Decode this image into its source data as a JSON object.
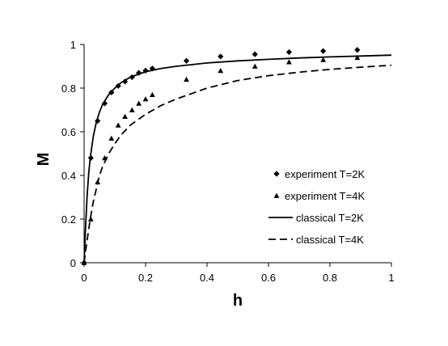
{
  "chart_data": {
    "type": "scatter",
    "xlabel": "h",
    "ylabel": "M",
    "xlim": [
      0,
      1
    ],
    "ylim": [
      0,
      1
    ],
    "x_ticks": [
      0,
      0.2,
      0.4,
      0.6,
      0.8,
      1
    ],
    "x_tick_labels": [
      "0",
      "0.2",
      "0.4",
      "0.6",
      "0.8",
      "1"
    ],
    "y_ticks": [
      0,
      0.2,
      0.4,
      0.6,
      0.8,
      1
    ],
    "y_tick_labels": [
      "0",
      "0.2",
      "0.4",
      "0.6",
      "0.8",
      "1"
    ],
    "grid": false,
    "legend_position": "right",
    "series": [
      {
        "name": "experiment T=2K",
        "kind": "markers",
        "marker": "diamond",
        "color": "#000000",
        "x": [
          0,
          0.022,
          0.044,
          0.067,
          0.089,
          0.111,
          0.133,
          0.156,
          0.178,
          0.2,
          0.222,
          0.333,
          0.444,
          0.556,
          0.667,
          0.778,
          0.889
        ],
        "y": [
          0,
          0.48,
          0.65,
          0.73,
          0.78,
          0.81,
          0.83,
          0.85,
          0.87,
          0.88,
          0.89,
          0.925,
          0.945,
          0.955,
          0.965,
          0.97,
          0.975
        ]
      },
      {
        "name": "experiment T=4K",
        "kind": "markers",
        "marker": "triangle",
        "color": "#000000",
        "x": [
          0,
          0.022,
          0.044,
          0.067,
          0.089,
          0.111,
          0.133,
          0.156,
          0.178,
          0.2,
          0.222,
          0.333,
          0.444,
          0.556,
          0.667,
          0.778,
          0.889
        ],
        "y": [
          0,
          0.2,
          0.37,
          0.48,
          0.57,
          0.63,
          0.67,
          0.7,
          0.73,
          0.75,
          0.77,
          0.84,
          0.88,
          0.9,
          0.92,
          0.93,
          0.94
        ]
      },
      {
        "name": "classical T=2K",
        "kind": "line",
        "dash": "solid",
        "color": "#000000",
        "x": [
          0,
          0.005,
          0.01,
          0.015,
          0.02,
          0.03,
          0.04,
          0.05,
          0.06,
          0.08,
          0.1,
          0.12,
          0.15,
          0.2,
          0.25,
          0.3,
          0.4,
          0.5,
          0.6,
          0.7,
          0.8,
          0.9,
          1.0
        ],
        "y": [
          0,
          0.17,
          0.31,
          0.41,
          0.48,
          0.58,
          0.645,
          0.69,
          0.725,
          0.77,
          0.8,
          0.825,
          0.85,
          0.875,
          0.89,
          0.9,
          0.915,
          0.925,
          0.932,
          0.938,
          0.943,
          0.947,
          0.951
        ]
      },
      {
        "name": "classical T=4K",
        "kind": "line",
        "dash": "dashed",
        "color": "#000000",
        "x": [
          0,
          0.005,
          0.01,
          0.02,
          0.03,
          0.04,
          0.05,
          0.06,
          0.08,
          0.1,
          0.12,
          0.15,
          0.2,
          0.25,
          0.3,
          0.4,
          0.5,
          0.6,
          0.7,
          0.8,
          0.9,
          1.0
        ],
        "y": [
          0,
          0.055,
          0.105,
          0.2,
          0.28,
          0.34,
          0.4,
          0.44,
          0.5,
          0.545,
          0.585,
          0.63,
          0.68,
          0.72,
          0.75,
          0.8,
          0.835,
          0.857,
          0.873,
          0.886,
          0.896,
          0.905
        ]
      }
    ]
  }
}
